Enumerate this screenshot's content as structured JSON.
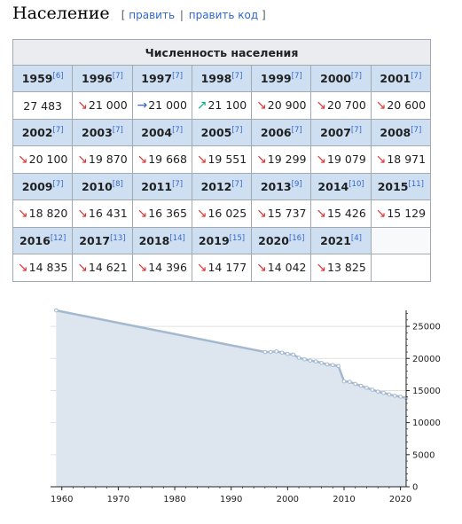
{
  "heading": {
    "title": "Население",
    "edit_open": "[",
    "edit_label": "править",
    "edit_sep": "|",
    "edit_code_label": "править код",
    "edit_close": "]"
  },
  "table": {
    "caption": "Численность населения",
    "rows": [
      [
        {
          "year": "1959",
          "ref": "[6]",
          "value": "27 483",
          "trend": ""
        },
        {
          "year": "1996",
          "ref": "[7]",
          "value": "21 000",
          "trend": "down"
        },
        {
          "year": "1997",
          "ref": "[7]",
          "value": "21 000",
          "trend": "flat"
        },
        {
          "year": "1998",
          "ref": "[7]",
          "value": "21 100",
          "trend": "up"
        },
        {
          "year": "1999",
          "ref": "[7]",
          "value": "20 900",
          "trend": "down"
        },
        {
          "year": "2000",
          "ref": "[7]",
          "value": "20 700",
          "trend": "down"
        },
        {
          "year": "2001",
          "ref": "[7]",
          "value": "20 600",
          "trend": "down"
        }
      ],
      [
        {
          "year": "2002",
          "ref": "[7]",
          "value": "20 100",
          "trend": "down"
        },
        {
          "year": "2003",
          "ref": "[7]",
          "value": "19 870",
          "trend": "down"
        },
        {
          "year": "2004",
          "ref": "[7]",
          "value": "19 668",
          "trend": "down"
        },
        {
          "year": "2005",
          "ref": "[7]",
          "value": "19 551",
          "trend": "down"
        },
        {
          "year": "2006",
          "ref": "[7]",
          "value": "19 299",
          "trend": "down"
        },
        {
          "year": "2007",
          "ref": "[7]",
          "value": "19 079",
          "trend": "down"
        },
        {
          "year": "2008",
          "ref": "[7]",
          "value": "18 971",
          "trend": "down"
        }
      ],
      [
        {
          "year": "2009",
          "ref": "[7]",
          "value": "18 820",
          "trend": "down"
        },
        {
          "year": "2010",
          "ref": "[8]",
          "value": "16 431",
          "trend": "down"
        },
        {
          "year": "2011",
          "ref": "[7]",
          "value": "16 365",
          "trend": "down"
        },
        {
          "year": "2012",
          "ref": "[7]",
          "value": "16 025",
          "trend": "down"
        },
        {
          "year": "2013",
          "ref": "[9]",
          "value": "15 737",
          "trend": "down"
        },
        {
          "year": "2014",
          "ref": "[10]",
          "value": "15 426",
          "trend": "down"
        },
        {
          "year": "2015",
          "ref": "[11]",
          "value": "15 129",
          "trend": "down"
        }
      ],
      [
        {
          "year": "2016",
          "ref": "[12]",
          "value": "14 835",
          "trend": "down"
        },
        {
          "year": "2017",
          "ref": "[13]",
          "value": "14 621",
          "trend": "down"
        },
        {
          "year": "2018",
          "ref": "[14]",
          "value": "14 396",
          "trend": "down"
        },
        {
          "year": "2019",
          "ref": "[15]",
          "value": "14 177",
          "trend": "down"
        },
        {
          "year": "2020",
          "ref": "[16]",
          "value": "14 042",
          "trend": "down"
        },
        {
          "year": "2021",
          "ref": "[4]",
          "value": "13 825",
          "trend": "down"
        },
        {
          "year": "",
          "ref": "",
          "value": "",
          "trend": ""
        }
      ]
    ]
  },
  "chart_data": {
    "type": "area",
    "x": [
      1959,
      1996,
      1997,
      1998,
      1999,
      2000,
      2001,
      2002,
      2003,
      2004,
      2005,
      2006,
      2007,
      2008,
      2009,
      2010,
      2011,
      2012,
      2013,
      2014,
      2015,
      2016,
      2017,
      2018,
      2019,
      2020,
      2021
    ],
    "y": [
      27483,
      21000,
      21000,
      21100,
      20900,
      20700,
      20600,
      20100,
      19870,
      19668,
      19551,
      19299,
      19079,
      18971,
      18820,
      16431,
      16365,
      16025,
      15737,
      15426,
      15129,
      14835,
      14621,
      14396,
      14177,
      14042,
      13825
    ],
    "xlim": [
      1958,
      2021
    ],
    "ylim": [
      0,
      27500
    ],
    "x_ticks": [
      1960,
      1970,
      1980,
      1990,
      2000,
      2010,
      2020
    ],
    "y_ticks": [
      0,
      5000,
      10000,
      15000,
      20000,
      25000
    ],
    "y_axis_side": "right",
    "grid": true,
    "colors": {
      "fill": "#dde5ee",
      "line": "#a4b9cf",
      "marker": "#a4b9cf",
      "grid": "#e0e0e0"
    }
  }
}
